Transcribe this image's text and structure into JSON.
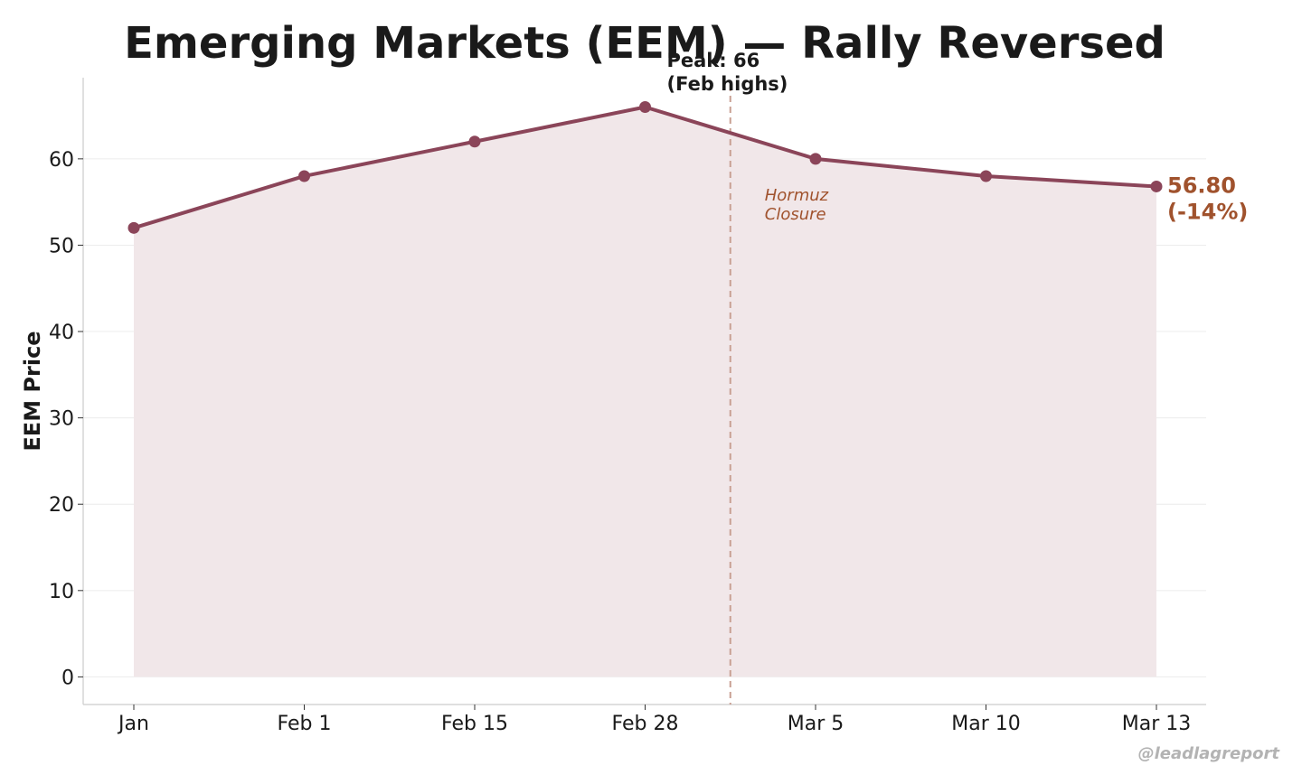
{
  "colors": {
    "line": "#8b4559",
    "fill": "#f1e7e9",
    "event_line": "#c9a093",
    "event_text": "#a0522d",
    "last_text": "#a0522d",
    "grid": "#ececec",
    "axis": "#cccccc"
  },
  "chart_data": {
    "type": "line",
    "title": "Emerging Markets (EEM) — Rally Reversed",
    "xlabel": "",
    "ylabel": "EEM Price",
    "categories": [
      "Jan",
      "Feb 1",
      "Feb 15",
      "Feb 28",
      "Mar 5",
      "Mar 10",
      "Mar 13"
    ],
    "series": [
      {
        "values": [
          52,
          58,
          62,
          66,
          60,
          58,
          56.8
        ]
      }
    ],
    "ylim": [
      -3.2,
      69.4
    ],
    "yticks": [
      0,
      10,
      20,
      30,
      40,
      50,
      60
    ],
    "grid": true,
    "area_fill": true,
    "annotations": {
      "peak": {
        "lines": [
          "Peak: 66",
          "(Feb highs)"
        ]
      },
      "event": {
        "lines": [
          "Hormuz",
          "Closure"
        ],
        "position_between": [
          "Feb 28",
          "Mar 5"
        ]
      },
      "last_value": {
        "lines": [
          "56.80",
          "(-14%)"
        ]
      }
    }
  },
  "watermark": "@leadlagreport"
}
